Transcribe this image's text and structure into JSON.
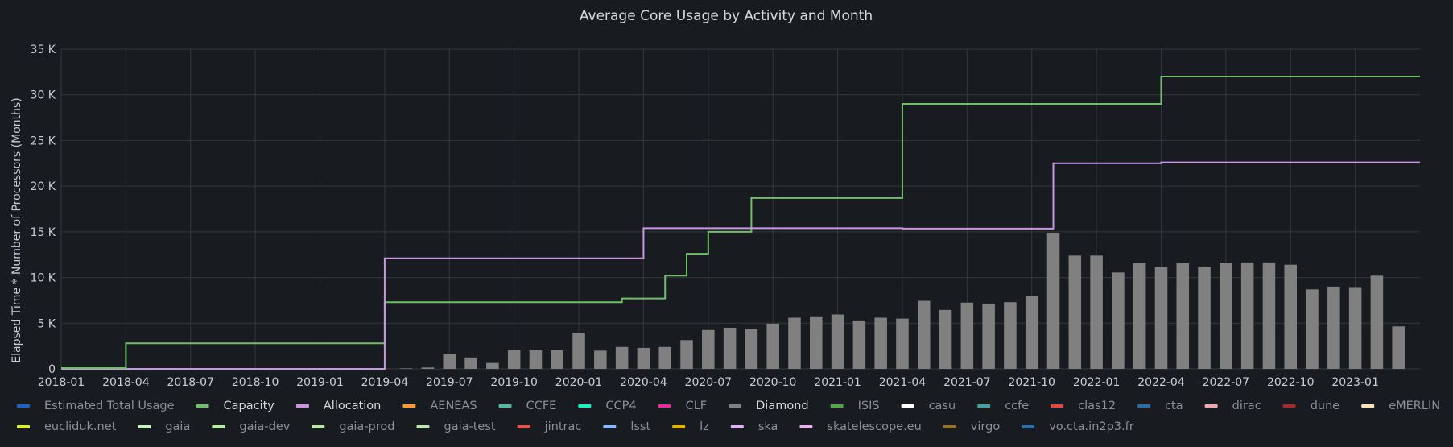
{
  "chart_data": {
    "type": "bar",
    "title": "Average Core Usage by Activity and Month",
    "xlabel": "",
    "ylabel": "Elapsed Time * Number of Processors (Months)",
    "ylim": [
      0,
      35000
    ],
    "yticks": [
      {
        "value": 0,
        "label": "0"
      },
      {
        "value": 5000,
        "label": "5 K"
      },
      {
        "value": 10000,
        "label": "10 K"
      },
      {
        "value": 15000,
        "label": "15 K"
      },
      {
        "value": 20000,
        "label": "20 K"
      },
      {
        "value": 25000,
        "label": "25 K"
      },
      {
        "value": 30000,
        "label": "30 K"
      },
      {
        "value": 35000,
        "label": "35 K"
      }
    ],
    "xrange": [
      "2018-01",
      "2023-04"
    ],
    "xticks": [
      "2018-01",
      "2018-04",
      "2018-07",
      "2018-10",
      "2019-01",
      "2019-04",
      "2019-07",
      "2019-10",
      "2020-01",
      "2020-04",
      "2020-07",
      "2020-10",
      "2021-01",
      "2021-04",
      "2021-07",
      "2021-10",
      "2022-01",
      "2022-04",
      "2022-07",
      "2022-10",
      "2023-01"
    ],
    "grid": true,
    "legend_position": "bottom",
    "colors": {
      "background": "#181b1f",
      "grid": "#34373d",
      "capacity": "#73bf69",
      "allocation": "#ca95e5",
      "diamond": "#808080"
    },
    "series": [
      {
        "name": "Capacity",
        "type": "step-line",
        "points": [
          {
            "x": "2018-01",
            "y": 0
          },
          {
            "x": "2018-04",
            "y": 2800
          },
          {
            "x": "2019-04",
            "y": 7300
          },
          {
            "x": "2020-03",
            "y": 7700
          },
          {
            "x": "2020-05",
            "y": 10200
          },
          {
            "x": "2020-06",
            "y": 12600
          },
          {
            "x": "2020-07",
            "y": 15000
          },
          {
            "x": "2020-09",
            "y": 18700
          },
          {
            "x": "2021-04",
            "y": 29000
          },
          {
            "x": "2022-04",
            "y": 32000
          },
          {
            "x": "2023-04",
            "y": 32000
          }
        ]
      },
      {
        "name": "Allocation",
        "type": "step-line",
        "points": [
          {
            "x": "2018-01",
            "y": 0
          },
          {
            "x": "2019-04",
            "y": 12100
          },
          {
            "x": "2020-04",
            "y": 15400
          },
          {
            "x": "2021-04",
            "y": 15350
          },
          {
            "x": "2021-11",
            "y": 22500
          },
          {
            "x": "2022-04",
            "y": 22600
          },
          {
            "x": "2023-04",
            "y": 22600
          }
        ]
      },
      {
        "name": "Diamond",
        "type": "bar",
        "x": [
          "2019-05",
          "2019-06",
          "2019-07",
          "2019-08",
          "2019-09",
          "2019-10",
          "2019-11",
          "2019-12",
          "2020-01",
          "2020-02",
          "2020-03",
          "2020-04",
          "2020-05",
          "2020-06",
          "2020-07",
          "2020-08",
          "2020-09",
          "2020-10",
          "2020-11",
          "2020-12",
          "2021-01",
          "2021-02",
          "2021-03",
          "2021-04",
          "2021-05",
          "2021-06",
          "2021-07",
          "2021-08",
          "2021-09",
          "2021-10",
          "2021-11",
          "2021-12",
          "2022-01",
          "2022-02",
          "2022-03",
          "2022-04",
          "2022-05",
          "2022-06",
          "2022-07",
          "2022-08",
          "2022-09",
          "2022-10",
          "2022-11",
          "2022-12",
          "2023-01",
          "2023-02",
          "2023-03"
        ],
        "values": [
          60,
          150,
          1600,
          1250,
          650,
          2050,
          2050,
          2050,
          3950,
          2000,
          2400,
          2300,
          2400,
          3150,
          4250,
          4500,
          4400,
          4950,
          5600,
          5750,
          5950,
          5300,
          5600,
          5500,
          7450,
          6450,
          7250,
          7150,
          7300,
          7950,
          14900,
          12400,
          12400,
          10550,
          11600,
          11150,
          11550,
          11200,
          11600,
          11650,
          11650,
          11400,
          8700,
          9000,
          8950,
          10200,
          4650
        ]
      }
    ],
    "legend": [
      {
        "name": "Estimated Total Usage",
        "color": "#1f60c4",
        "active": false
      },
      {
        "name": "Capacity",
        "color": "#73bf69",
        "active": true
      },
      {
        "name": "Allocation",
        "color": "#ca95e5",
        "active": true
      },
      {
        "name": "AENEAS",
        "color": "#ff9830",
        "active": false
      },
      {
        "name": "CCFE",
        "color": "#58b9a5",
        "active": false
      },
      {
        "name": "CCP4",
        "color": "#1af2c1",
        "active": false
      },
      {
        "name": "CLF",
        "color": "#e02f9a",
        "active": false
      },
      {
        "name": "Diamond",
        "color": "#808080",
        "active": true
      },
      {
        "name": "ISIS",
        "color": "#56a64b",
        "active": false
      },
      {
        "name": "casu",
        "color": "#ffffff",
        "active": false
      },
      {
        "name": "ccfe",
        "color": "#45a2a0",
        "active": false
      },
      {
        "name": "clas12",
        "color": "#e0474b",
        "active": false
      },
      {
        "name": "cta",
        "color": "#2b6ca3",
        "active": false
      },
      {
        "name": "dirac",
        "color": "#f2a6b0",
        "active": false
      },
      {
        "name": "dune",
        "color": "#a52a2a",
        "active": false
      },
      {
        "name": "eMERLIN",
        "color": "#fce2b7",
        "active": false
      },
      {
        "name": "eucliduk.net",
        "color": "#d8f12c",
        "active": false
      },
      {
        "name": "gaia",
        "color": "#c8f2c2",
        "active": false
      },
      {
        "name": "gaia-dev",
        "color": "#b7eda7",
        "active": false
      },
      {
        "name": "gaia-prod",
        "color": "#bce4a8",
        "active": false
      },
      {
        "name": "gaia-test",
        "color": "#c0e6b3",
        "active": false
      },
      {
        "name": "jintrac",
        "color": "#e0534f",
        "active": false
      },
      {
        "name": "lsst",
        "color": "#8ab8ff",
        "active": false
      },
      {
        "name": "lz",
        "color": "#e0b400",
        "active": false
      },
      {
        "name": "ska",
        "color": "#deb6f2",
        "active": false
      },
      {
        "name": "skatelescope.eu",
        "color": "#e6b3f0",
        "active": false
      },
      {
        "name": "virgo",
        "color": "#96712b",
        "active": false
      },
      {
        "name": "vo.cta.in2p3.fr",
        "color": "#2d6ea3",
        "active": false
      }
    ]
  }
}
